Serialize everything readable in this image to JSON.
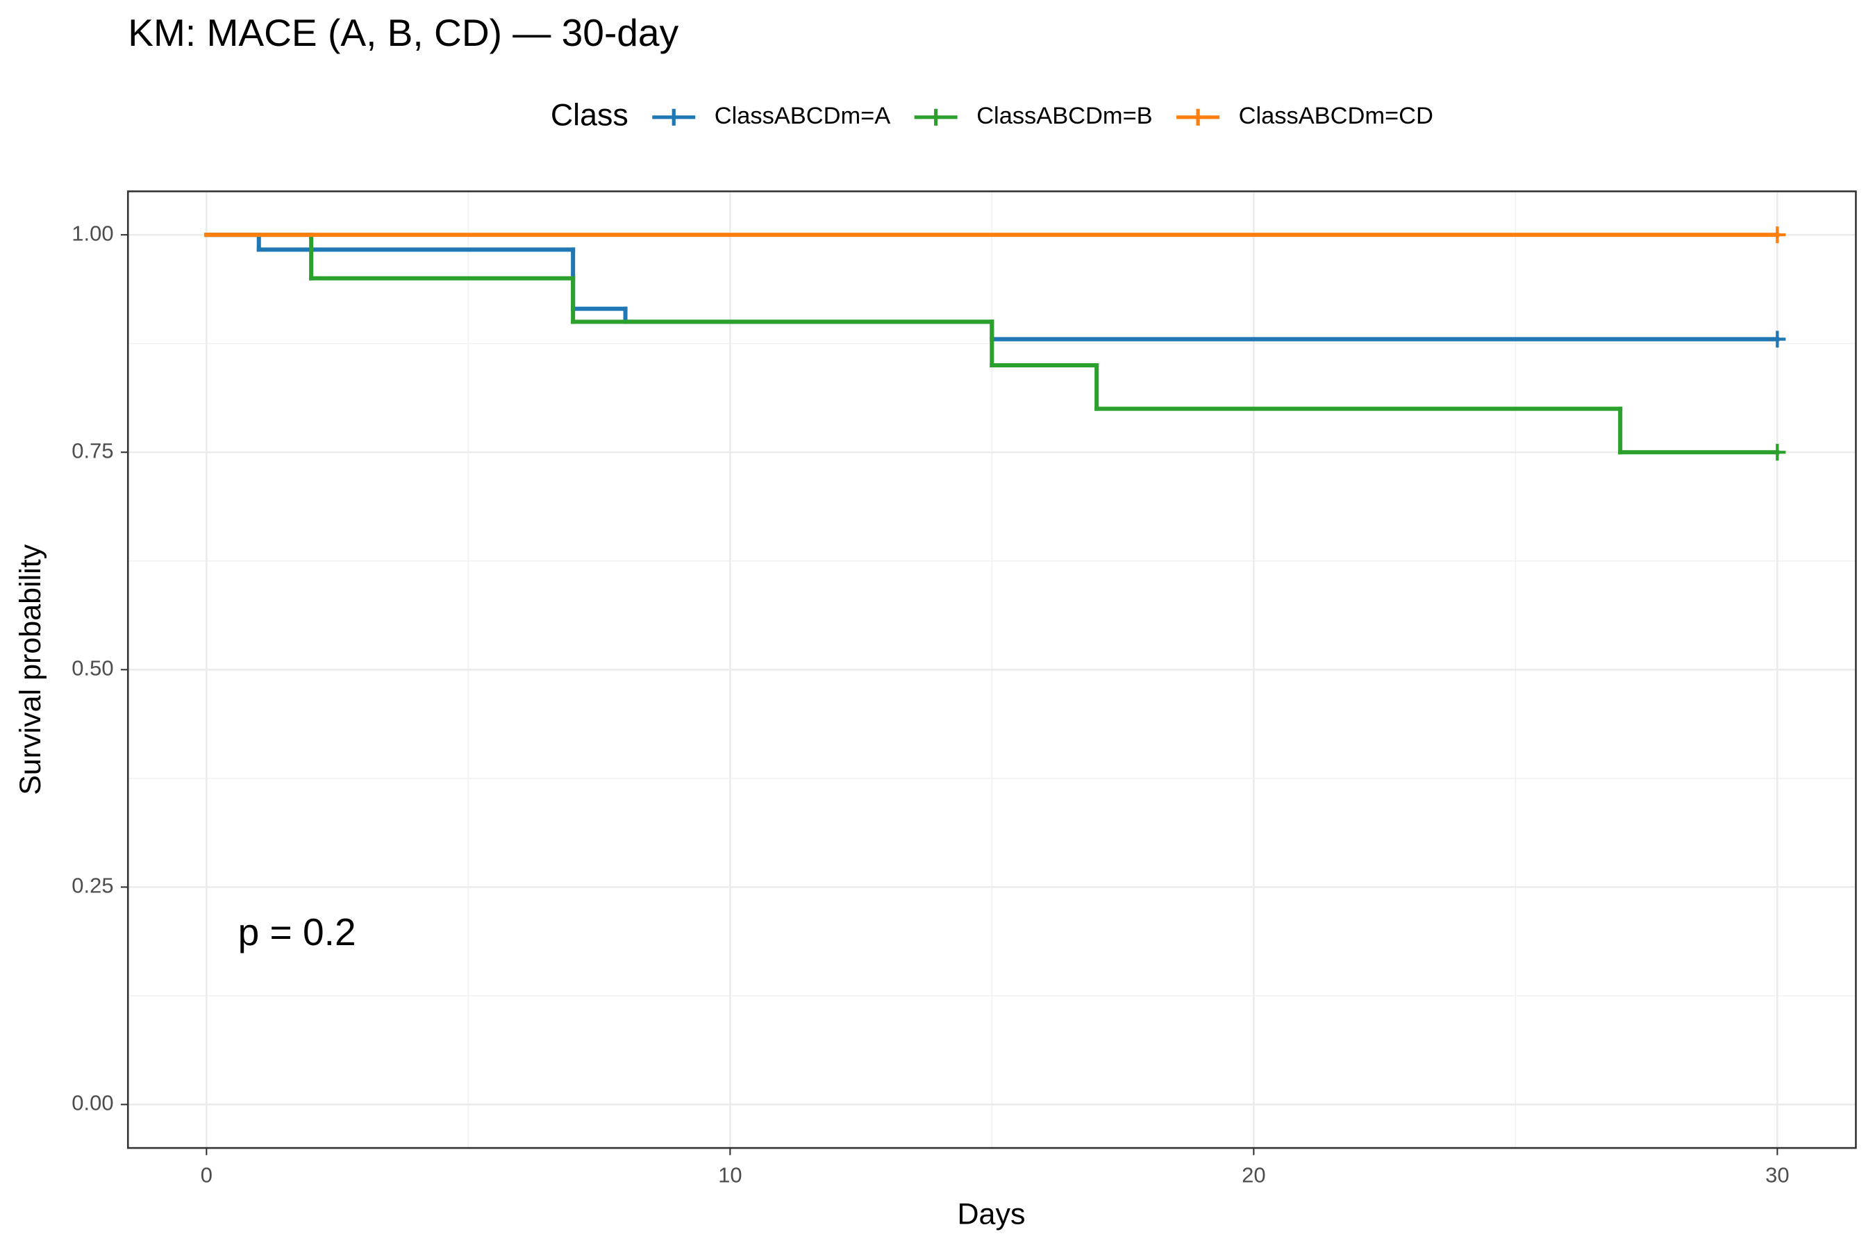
{
  "chart_data": {
    "type": "step",
    "title": "KM: MACE (A, B, CD) — 30-day",
    "x_label": "Days",
    "y_label": "Survival probability",
    "annotation": "p = 0.2",
    "legend_title": "Class",
    "legend_position": "top",
    "grid": true,
    "minor_grid": true,
    "xlim": [
      -1.5,
      31.5
    ],
    "ylim": [
      -0.05,
      1.05
    ],
    "xticks": [
      0,
      10,
      20,
      30
    ],
    "yticks": [
      {
        "value": 0,
        "label": "0.00"
      },
      0.25,
      {
        "value": 0.5,
        "label": "0.50"
      },
      0.75,
      {
        "value": 1,
        "label": "1.00"
      }
    ],
    "series": [
      {
        "name": "ClassABCDm=A",
        "color": "#1f77b4",
        "x": [
          0,
          1,
          7,
          8,
          15,
          30
        ],
        "values": [
          1,
          0.983,
          0.915,
          0.9,
          0.88,
          0.88
        ]
      },
      {
        "name": "ClassABCDm=B",
        "color": "#2ca02c",
        "x": [
          0,
          2,
          7,
          15,
          17,
          27,
          30
        ],
        "values": [
          1,
          0.95,
          0.9,
          0.85,
          0.8,
          0.75,
          0.75
        ]
      },
      {
        "name": "ClassABCDm=CD",
        "color": "#ff7f0e",
        "x": [
          0,
          30
        ],
        "values": [
          1,
          1
        ]
      }
    ]
  }
}
